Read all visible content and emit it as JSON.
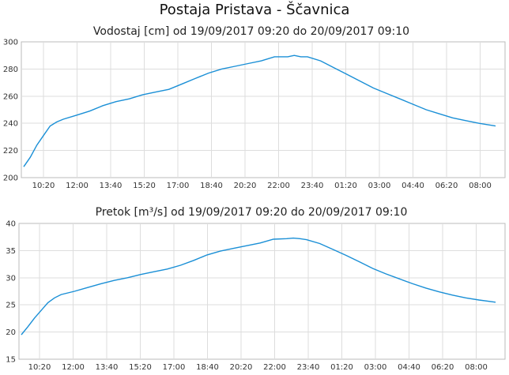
{
  "title": "Postaja Pristava - Ščavnica",
  "chart_data": [
    {
      "type": "line",
      "title": "Vodostaj [cm] od 19/09/2017 09:20 do 20/09/2017 09:10",
      "ylim": [
        200,
        300
      ],
      "yticks": [
        "200",
        "220",
        "240",
        "260",
        "280",
        "300"
      ],
      "xticks": [
        "10:20",
        "12:00",
        "13:40",
        "15:20",
        "17:00",
        "18:40",
        "20:20",
        "22:00",
        "23:40",
        "01:20",
        "03:00",
        "04:40",
        "06:20",
        "08:00"
      ],
      "xlim": [
        "19/09/2017 09:20",
        "20/09/2017 09:10"
      ],
      "grid": true,
      "series": [
        {
          "color": "#1a8fd6",
          "x": [
            "19/09/2017 09:20",
            "19/09/2017 09:40",
            "19/09/2017 10:00",
            "19/09/2017 10:20",
            "19/09/2017 10:40",
            "19/09/2017 11:00",
            "19/09/2017 11:20",
            "19/09/2017 12:00",
            "19/09/2017 12:40",
            "19/09/2017 13:20",
            "19/09/2017 14:00",
            "19/09/2017 14:40",
            "19/09/2017 15:20",
            "19/09/2017 16:00",
            "19/09/2017 16:40",
            "19/09/2017 17:20",
            "19/09/2017 18:00",
            "19/09/2017 18:40",
            "19/09/2017 19:20",
            "19/09/2017 20:00",
            "19/09/2017 20:40",
            "19/09/2017 21:20",
            "19/09/2017 22:00",
            "19/09/2017 22:40",
            "19/09/2017 23:00",
            "19/09/2017 23:20",
            "19/09/2017 23:40",
            "20/09/2017 00:20",
            "20/09/2017 01:00",
            "20/09/2017 01:40",
            "20/09/2017 02:20",
            "20/09/2017 03:00",
            "20/09/2017 03:40",
            "20/09/2017 04:20",
            "20/09/2017 05:00",
            "20/09/2017 05:40",
            "20/09/2017 06:20",
            "20/09/2017 07:00",
            "20/09/2017 07:40",
            "20/09/2017 08:20",
            "20/09/2017 09:10"
          ],
          "values": [
            208,
            215,
            224,
            231,
            238,
            241,
            243,
            246,
            249,
            253,
            256,
            258,
            261,
            263,
            265,
            269,
            273,
            277,
            280,
            282,
            284,
            286,
            289,
            289,
            290,
            289,
            289,
            286,
            281,
            276,
            271,
            266,
            262,
            258,
            254,
            250,
            247,
            244,
            242,
            240,
            238
          ]
        }
      ]
    },
    {
      "type": "line",
      "title": "Pretok [m³/s] od 19/09/2017 09:20 do 20/09/2017 09:10",
      "ylim": [
        15,
        40
      ],
      "yticks": [
        "15",
        "20",
        "25",
        "30",
        "35",
        "40"
      ],
      "xticks": [
        "10:20",
        "12:00",
        "13:40",
        "15:20",
        "17:00",
        "18:40",
        "20:20",
        "22:00",
        "23:40",
        "01:20",
        "03:00",
        "04:40",
        "06:20",
        "08:00"
      ],
      "xlim": [
        "19/09/2017 09:20",
        "20/09/2017 09:10"
      ],
      "grid": true,
      "series": [
        {
          "color": "#1a8fd6",
          "x": [
            "19/09/2017 09:20",
            "19/09/2017 09:40",
            "19/09/2017 10:00",
            "19/09/2017 10:20",
            "19/09/2017 10:40",
            "19/09/2017 11:00",
            "19/09/2017 11:20",
            "19/09/2017 12:00",
            "19/09/2017 12:40",
            "19/09/2017 13:20",
            "19/09/2017 14:00",
            "19/09/2017 14:40",
            "19/09/2017 15:20",
            "19/09/2017 16:00",
            "19/09/2017 16:40",
            "19/09/2017 17:20",
            "19/09/2017 18:00",
            "19/09/2017 18:40",
            "19/09/2017 19:20",
            "19/09/2017 20:00",
            "19/09/2017 20:40",
            "19/09/2017 21:20",
            "19/09/2017 22:00",
            "19/09/2017 22:40",
            "19/09/2017 23:00",
            "19/09/2017 23:20",
            "19/09/2017 23:40",
            "20/09/2017 00:20",
            "20/09/2017 01:00",
            "20/09/2017 01:40",
            "20/09/2017 02:20",
            "20/09/2017 03:00",
            "20/09/2017 03:40",
            "20/09/2017 04:20",
            "20/09/2017 05:00",
            "20/09/2017 05:40",
            "20/09/2017 06:20",
            "20/09/2017 07:00",
            "20/09/2017 07:40",
            "20/09/2017 08:20",
            "20/09/2017 09:10"
          ],
          "values": [
            19.5,
            21.0,
            22.6,
            24.0,
            25.4,
            26.3,
            26.9,
            27.5,
            28.2,
            28.9,
            29.5,
            30.0,
            30.6,
            31.1,
            31.6,
            32.3,
            33.2,
            34.2,
            34.9,
            35.4,
            35.9,
            36.4,
            37.1,
            37.2,
            37.3,
            37.2,
            37.0,
            36.3,
            35.2,
            34.1,
            32.9,
            31.7,
            30.7,
            29.8,
            28.9,
            28.1,
            27.4,
            26.8,
            26.3,
            25.9,
            25.5
          ]
        }
      ]
    }
  ]
}
